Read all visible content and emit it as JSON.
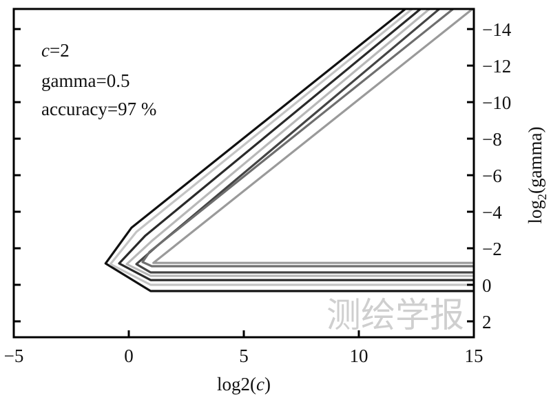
{
  "chart_data": {
    "type": "contour",
    "xlabel": "log2(c)",
    "xlabel_parts": {
      "pre": "log2(",
      "italic": "c",
      "post": ")"
    },
    "ylabel": "log2(gamma)",
    "ylabel_parts": {
      "pre": "log",
      "sub": "2",
      "post": "(gamma)"
    },
    "xlim": [
      -5,
      15
    ],
    "ylim": [
      -15.1,
      2.87
    ],
    "y_inverted": true,
    "y_axis_side": "right",
    "grid": false,
    "xticks": [
      -5,
      0,
      5,
      10,
      15
    ],
    "xtick_labels": [
      "−5",
      "0",
      "5",
      "10",
      "15"
    ],
    "yticks": [
      -14,
      -12,
      -10,
      -8,
      -6,
      -4,
      -2,
      0,
      2
    ],
    "ytick_labels": [
      "−14",
      "−12",
      "−10",
      "−8",
      "−6",
      "−4",
      "−2",
      "0",
      "2"
    ],
    "annotations": {
      "c_label": {
        "italic": "c",
        "text": "=2"
      },
      "gamma": "gamma=0.5",
      "accuracy": "accuracy=97 %"
    },
    "contours": [
      {
        "color": "#111111",
        "points": [
          [
            15,
            0.34
          ],
          [
            0.95,
            0.34
          ],
          [
            -1.01,
            -1.17
          ],
          [
            0.12,
            -3.13
          ],
          [
            12.02,
            -15.1
          ]
        ]
      },
      {
        "color": "#c4c4c4",
        "points": [
          [
            15,
            0
          ],
          [
            0.95,
            0
          ],
          [
            -0.8,
            -1.13
          ],
          [
            0.33,
            -2.9
          ],
          [
            12.32,
            -15.1
          ]
        ]
      },
      {
        "color": "#2a2a2a",
        "points": [
          [
            15,
            -0.26
          ],
          [
            0.95,
            -0.26
          ],
          [
            -0.42,
            -1.17
          ],
          [
            0.71,
            -2.68
          ],
          [
            12.68,
            -15.1
          ]
        ]
      },
      {
        "color": "#b8b8b8",
        "points": [
          [
            15,
            -0.49
          ],
          [
            0.95,
            -0.49
          ],
          [
            -0.09,
            -1.13
          ],
          [
            1.0,
            -2.4
          ],
          [
            13.07,
            -15.1
          ]
        ]
      },
      {
        "color": "#444444",
        "points": [
          [
            15,
            -0.68
          ],
          [
            0.95,
            -0.68
          ],
          [
            0.33,
            -1.13
          ],
          [
            1.2,
            -2.1
          ],
          [
            13.5,
            -15.1
          ]
        ]
      },
      {
        "color": "#6e6e6e",
        "points": [
          [
            15,
            -1.02
          ],
          [
            1.0,
            -1.02
          ],
          [
            0.6,
            -1.25
          ],
          [
            0.9,
            -1.8
          ],
          [
            14.1,
            -15.1
          ]
        ]
      },
      {
        "color": "#9a9a9a",
        "points": [
          [
            15,
            -1.2
          ],
          [
            1.07,
            -1.2
          ],
          [
            14.94,
            -15.1
          ]
        ]
      }
    ]
  },
  "watermark": "测绘学报"
}
